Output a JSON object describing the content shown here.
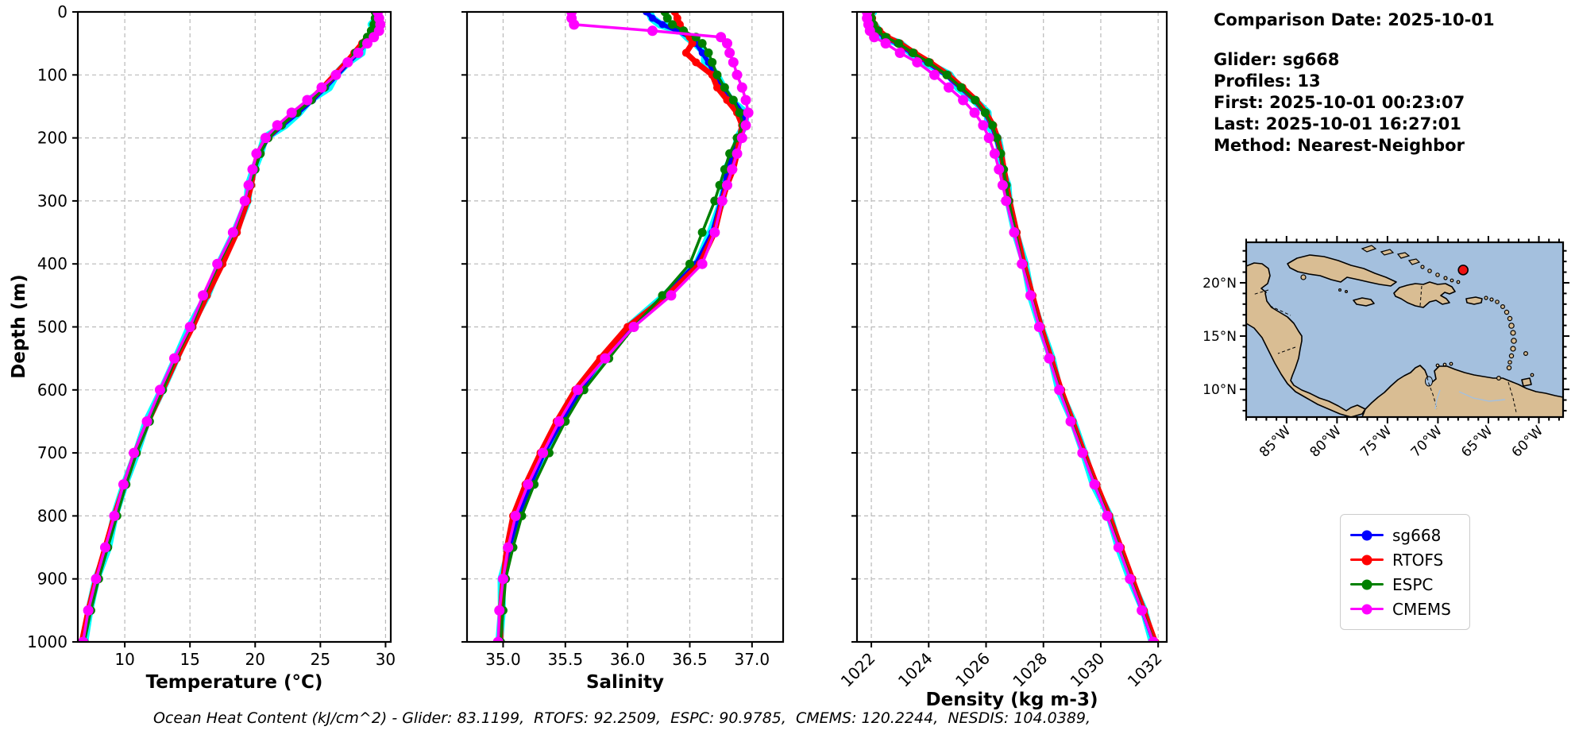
{
  "info_panel": {
    "lines": [
      "Comparison Date: 2025-10-01",
      "Glider: sg668",
      "Profiles: 13",
      "First: 2025-10-01 00:23:07",
      "Last: 2025-10-01 16:27:01",
      "Method: Nearest-Neighbor"
    ]
  },
  "legend": {
    "items": [
      {
        "label": "sg668",
        "color": "#0000ff"
      },
      {
        "label": "RTOFS",
        "color": "#ff0000"
      },
      {
        "label": "ESPC",
        "color": "#008000"
      },
      {
        "label": "CMEMS",
        "color": "#ff00ff"
      }
    ]
  },
  "footer": {
    "text": "Ocean Heat Content (kJ/cm^2) - Glider: 83.1199,  RTOFS: 92.2509,  ESPC: 90.9785,  CMEMS: 120.2244,  NESDIS: 104.0389,"
  },
  "map": {
    "extent_lon": [
      -89.0,
      -57.6
    ],
    "extent_lat": [
      7.4,
      23.8
    ],
    "lon_ticks": [
      {
        "label": "85°W",
        "lon": -85
      },
      {
        "label": "80°W",
        "lon": -80
      },
      {
        "label": "75°W",
        "lon": -75
      },
      {
        "label": "70°W",
        "lon": -70
      },
      {
        "label": "65°W",
        "lon": -65
      },
      {
        "label": "60°W",
        "lon": -60
      }
    ],
    "lat_ticks": [
      {
        "label": "20°N",
        "lat": 20
      },
      {
        "label": "15°N",
        "lat": 15
      },
      {
        "label": "10°N",
        "lat": 10
      }
    ],
    "marker": {
      "lon": -67.5,
      "lat": 21.2,
      "color": "#ee1111"
    },
    "ocean_color": "#a4c0de",
    "land_color": "#d9bd93"
  },
  "chart_data": [
    {
      "type": "line",
      "xlabel": "Temperature (°C)",
      "ylabel": "Depth (m)",
      "xlim": [
        6.4,
        30.4
      ],
      "ylim": [
        1000,
        0
      ],
      "xticks": [
        10,
        15,
        20,
        25,
        30
      ],
      "xtick_labels": [
        "10",
        "15",
        "20",
        "25",
        "30"
      ],
      "xtick_rotation": 0,
      "yticks": [
        0,
        100,
        200,
        300,
        400,
        500,
        600,
        700,
        800,
        900,
        1000
      ],
      "show_yticklabels": true,
      "grid": true,
      "depths": [
        0,
        10,
        20,
        30,
        40,
        50,
        65,
        80,
        100,
        120,
        140,
        160,
        180,
        200,
        225,
        250,
        275,
        300,
        350,
        400,
        450,
        500,
        550,
        600,
        650,
        700,
        750,
        800,
        850,
        900,
        950,
        1000
      ],
      "series": [
        {
          "name": "sg668",
          "color": "#0000ff",
          "halo_color": "#00ffff",
          "values": [
            29.2,
            29.2,
            29.2,
            29.1,
            28.8,
            28.5,
            27.9,
            27.2,
            26.3,
            25.4,
            24.4,
            23.3,
            22.1,
            21.0,
            20.3,
            19.9,
            19.6,
            19.3,
            18.5,
            17.3,
            16.2,
            15.1,
            13.9,
            12.8,
            11.8,
            10.8,
            10.0,
            9.3,
            8.6,
            7.9,
            7.3,
            6.8
          ]
        },
        {
          "name": "RTOFS",
          "color": "#ff0000",
          "values": [
            29.3,
            29.3,
            29.2,
            29.0,
            28.6,
            28.2,
            27.6,
            27.0,
            26.1,
            25.2,
            24.2,
            23.0,
            21.9,
            20.9,
            20.2,
            19.9,
            19.7,
            19.4,
            18.6,
            17.5,
            16.3,
            15.2,
            14.0,
            12.9,
            11.8,
            10.8,
            10.0,
            9.2,
            8.5,
            7.8,
            7.2,
            6.7
          ]
        },
        {
          "name": "ESPC",
          "color": "#008000",
          "values": [
            29.2,
            29.2,
            29.1,
            28.9,
            28.6,
            28.3,
            27.7,
            27.1,
            26.2,
            25.3,
            24.3,
            23.2,
            22.0,
            21.0,
            20.4,
            20.0,
            19.6,
            19.2,
            18.4,
            17.2,
            16.1,
            15.1,
            13.9,
            12.9,
            11.9,
            10.9,
            10.1,
            9.4,
            8.7,
            8.0,
            7.4,
            6.9
          ]
        },
        {
          "name": "CMEMS",
          "color": "#ff00ff",
          "values": [
            29.4,
            29.5,
            29.6,
            29.5,
            29.1,
            28.6,
            27.9,
            27.1,
            26.2,
            25.1,
            24.0,
            22.8,
            21.7,
            20.8,
            20.1,
            19.8,
            19.5,
            19.2,
            18.3,
            17.1,
            16.0,
            15.0,
            13.8,
            12.7,
            11.7,
            10.7,
            9.9,
            9.2,
            8.5,
            7.8,
            7.2,
            6.8
          ]
        }
      ]
    },
    {
      "type": "line",
      "xlabel": "Salinity",
      "ylabel": "",
      "xlim": [
        34.71,
        37.25
      ],
      "ylim": [
        1000,
        0
      ],
      "xticks": [
        35.0,
        35.5,
        36.0,
        36.5,
        37.0
      ],
      "xtick_labels": [
        "35.0",
        "35.5",
        "36.0",
        "36.5",
        "37.0"
      ],
      "xtick_rotation": 0,
      "yticks": [
        0,
        100,
        200,
        300,
        400,
        500,
        600,
        700,
        800,
        900,
        1000
      ],
      "show_yticklabels": false,
      "grid": true,
      "depths": [
        0,
        10,
        20,
        30,
        40,
        50,
        65,
        80,
        100,
        120,
        140,
        160,
        180,
        200,
        225,
        250,
        275,
        300,
        350,
        400,
        450,
        500,
        550,
        600,
        650,
        700,
        750,
        800,
        850,
        900,
        950,
        1000
      ],
      "series": [
        {
          "name": "sg668",
          "color": "#0000ff",
          "halo_color": "#00ffff",
          "values": [
            36.15,
            36.2,
            36.28,
            36.4,
            36.5,
            36.55,
            36.6,
            36.65,
            36.7,
            36.76,
            36.85,
            36.92,
            36.95,
            36.9,
            36.85,
            36.8,
            36.78,
            36.75,
            36.68,
            36.55,
            36.3,
            36.02,
            35.8,
            35.62,
            35.47,
            35.33,
            35.22,
            35.12,
            35.05,
            35.0,
            34.98,
            34.97
          ]
        },
        {
          "name": "RTOFS",
          "color": "#ff0000",
          "values": [
            36.38,
            36.4,
            36.42,
            36.45,
            36.5,
            36.52,
            36.47,
            36.55,
            36.68,
            36.72,
            36.8,
            36.88,
            36.92,
            36.9,
            36.88,
            36.85,
            36.8,
            36.76,
            36.7,
            36.58,
            36.32,
            36.0,
            35.78,
            35.58,
            35.43,
            35.3,
            35.18,
            35.08,
            35.03,
            35.0,
            34.98,
            34.98
          ]
        },
        {
          "name": "ESPC",
          "color": "#008000",
          "values": [
            36.3,
            36.32,
            36.36,
            36.45,
            36.55,
            36.6,
            36.65,
            36.68,
            36.72,
            36.78,
            36.85,
            36.9,
            36.93,
            36.88,
            36.82,
            36.78,
            36.74,
            36.7,
            36.6,
            36.5,
            36.28,
            36.05,
            35.85,
            35.65,
            35.5,
            35.37,
            35.25,
            35.15,
            35.08,
            35.02,
            35.0,
            34.98
          ]
        },
        {
          "name": "CMEMS",
          "color": "#ff00ff",
          "values": [
            35.55,
            35.55,
            35.57,
            36.2,
            36.75,
            36.8,
            36.82,
            36.85,
            36.88,
            36.92,
            36.95,
            36.97,
            36.95,
            36.92,
            36.88,
            36.84,
            36.8,
            36.76,
            36.7,
            36.6,
            36.35,
            36.05,
            35.82,
            35.6,
            35.45,
            35.32,
            35.2,
            35.1,
            35.04,
            35.0,
            34.97,
            34.96
          ]
        }
      ]
    },
    {
      "type": "line",
      "xlabel": "Density (kg m-3)",
      "ylabel": "",
      "xlim": [
        1021.5,
        1032.3
      ],
      "ylim": [
        1000,
        0
      ],
      "xticks": [
        1022,
        1024,
        1026,
        1028,
        1030,
        1032
      ],
      "xtick_labels": [
        "1022",
        "1024",
        "1026",
        "1028",
        "1030",
        "1032"
      ],
      "xtick_rotation": 45,
      "yticks": [
        0,
        100,
        200,
        300,
        400,
        500,
        600,
        700,
        800,
        900,
        1000
      ],
      "show_yticklabels": false,
      "grid": true,
      "depths": [
        0,
        10,
        20,
        30,
        40,
        50,
        65,
        80,
        100,
        120,
        140,
        160,
        180,
        200,
        225,
        250,
        275,
        300,
        350,
        400,
        450,
        500,
        550,
        600,
        650,
        700,
        750,
        800,
        850,
        900,
        950,
        1000
      ],
      "series": [
        {
          "name": "sg668",
          "color": "#0000ff",
          "halo_color": "#00ffff",
          "values": [
            1021.95,
            1021.98,
            1022.05,
            1022.2,
            1022.45,
            1022.9,
            1023.4,
            1023.95,
            1024.6,
            1025.1,
            1025.6,
            1025.95,
            1026.2,
            1026.35,
            1026.5,
            1026.6,
            1026.7,
            1026.8,
            1027.05,
            1027.3,
            1027.6,
            1027.9,
            1028.25,
            1028.6,
            1029.0,
            1029.4,
            1029.8,
            1030.25,
            1030.65,
            1031.05,
            1031.45,
            1031.85
          ]
        },
        {
          "name": "RTOFS",
          "color": "#ff0000",
          "values": [
            1022.0,
            1022.03,
            1022.1,
            1022.28,
            1022.55,
            1023.0,
            1023.5,
            1024.05,
            1024.68,
            1025.18,
            1025.65,
            1026.0,
            1026.25,
            1026.4,
            1026.53,
            1026.63,
            1026.72,
            1026.82,
            1027.07,
            1027.32,
            1027.62,
            1027.92,
            1028.27,
            1028.62,
            1029.02,
            1029.42,
            1029.85,
            1030.3,
            1030.7,
            1031.1,
            1031.5,
            1031.9
          ]
        },
        {
          "name": "ESPC",
          "color": "#008000",
          "values": [
            1021.97,
            1022.0,
            1022.07,
            1022.23,
            1022.5,
            1022.95,
            1023.45,
            1024.0,
            1024.63,
            1025.13,
            1025.62,
            1025.97,
            1026.22,
            1026.37,
            1026.51,
            1026.61,
            1026.7,
            1026.79,
            1027.03,
            1027.27,
            1027.57,
            1027.87,
            1028.22,
            1028.58,
            1028.98,
            1029.38,
            1029.8,
            1030.25,
            1030.65,
            1031.05,
            1031.45,
            1031.85
          ]
        },
        {
          "name": "CMEMS",
          "color": "#ff00ff",
          "values": [
            1021.85,
            1021.85,
            1021.9,
            1021.95,
            1022.1,
            1022.5,
            1023.0,
            1023.6,
            1024.2,
            1024.7,
            1025.2,
            1025.6,
            1025.9,
            1026.1,
            1026.3,
            1026.45,
            1026.58,
            1026.7,
            1026.98,
            1027.25,
            1027.55,
            1027.85,
            1028.2,
            1028.55,
            1028.95,
            1029.36,
            1029.78,
            1030.22,
            1030.62,
            1031.02,
            1031.43,
            1031.83
          ]
        }
      ]
    }
  ]
}
